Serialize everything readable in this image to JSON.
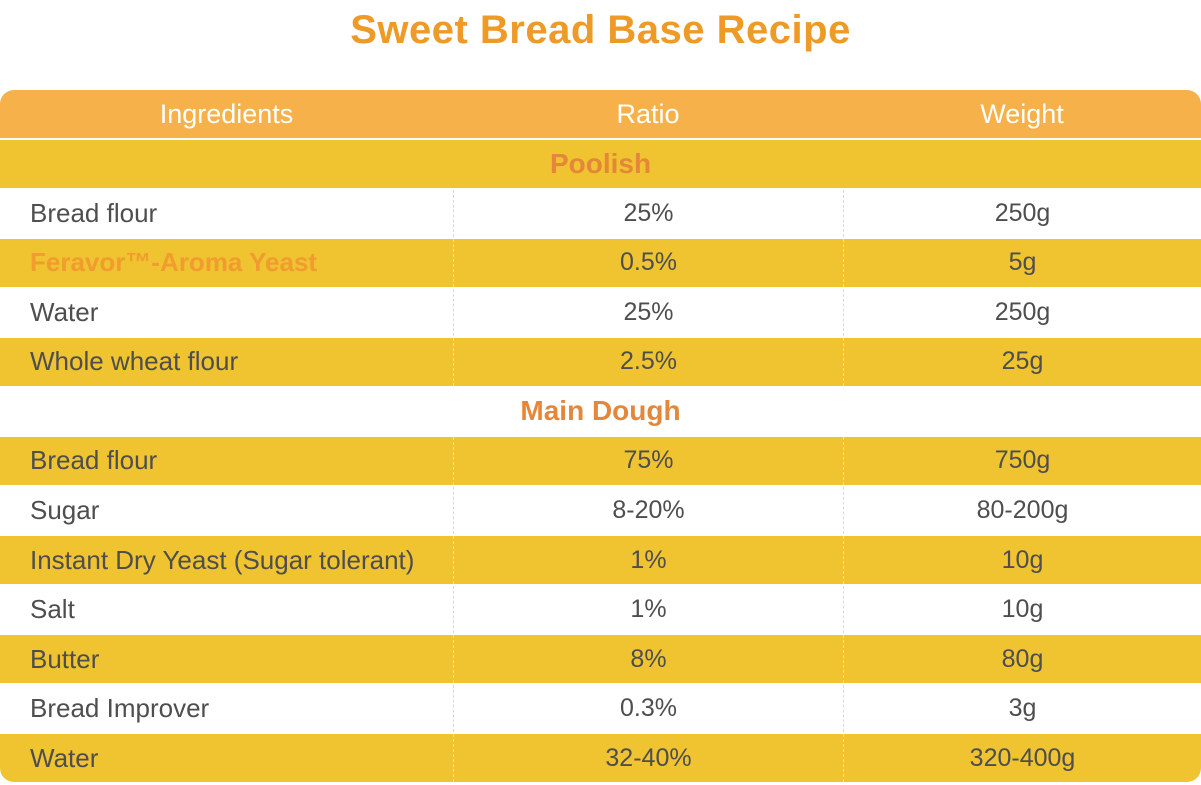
{
  "title": "Sweet Bread Base Recipe",
  "colors": {
    "title_orange": "#EE9A27",
    "header_bg": "#F6B14B",
    "row_yellow": "#F0C330",
    "section_orange": "#E5873A",
    "brand_orange": "#F09C2E",
    "text_gray": "#4E4E4E"
  },
  "table": {
    "columns": [
      "Ingredients",
      "Ratio",
      "Weight"
    ],
    "rows": [
      {
        "type": "section",
        "label": "Poolish"
      },
      {
        "type": "data",
        "ingredient": "Bread flour",
        "ratio": "25%",
        "weight": "250g"
      },
      {
        "type": "data",
        "ingredient": "Feravor™-Aroma Yeast",
        "ratio": "0.5%",
        "weight": "5g"
      },
      {
        "type": "data",
        "ingredient": "Water",
        "ratio": "25%",
        "weight": "250g"
      },
      {
        "type": "data",
        "ingredient": "Whole wheat flour",
        "ratio": "2.5%",
        "weight": "25g"
      },
      {
        "type": "section",
        "label": "Main Dough"
      },
      {
        "type": "data",
        "ingredient": "Bread flour",
        "ratio": "75%",
        "weight": "750g"
      },
      {
        "type": "data",
        "ingredient": "Sugar",
        "ratio": "8-20%",
        "weight": "80-200g"
      },
      {
        "type": "data",
        "ingredient": "Instant Dry Yeast (Sugar tolerant)",
        "ratio": "1%",
        "weight": "10g"
      },
      {
        "type": "data",
        "ingredient": "Salt",
        "ratio": "1%",
        "weight": "10g"
      },
      {
        "type": "data",
        "ingredient": "Butter",
        "ratio": "8%",
        "weight": "80g"
      },
      {
        "type": "data",
        "ingredient": "Bread Improver",
        "ratio": "0.3%",
        "weight": "3g"
      },
      {
        "type": "data",
        "ingredient": "Water",
        "ratio": "32-40%",
        "weight": "320-400g"
      }
    ]
  },
  "chart_data": {
    "type": "table",
    "title": "Sweet Bread Base Recipe",
    "columns": [
      "Ingredients",
      "Ratio",
      "Weight"
    ],
    "sections": [
      {
        "name": "Poolish",
        "rows": [
          [
            "Bread flour",
            "25%",
            "250g"
          ],
          [
            "Feravor™-Aroma Yeast",
            "0.5%",
            "5g"
          ],
          [
            "Water",
            "25%",
            "250g"
          ],
          [
            "Whole wheat flour",
            "2.5%",
            "25g"
          ]
        ]
      },
      {
        "name": "Main Dough",
        "rows": [
          [
            "Bread flour",
            "75%",
            "750g"
          ],
          [
            "Sugar",
            "8-20%",
            "80-200g"
          ],
          [
            "Instant Dry Yeast (Sugar tolerant)",
            "1%",
            "10g"
          ],
          [
            "Salt",
            "1%",
            "10g"
          ],
          [
            "Butter",
            "8%",
            "80g"
          ],
          [
            "Bread Improver",
            "0.3%",
            "3g"
          ],
          [
            "Water",
            "32-40%",
            "320-400g"
          ]
        ]
      }
    ]
  }
}
